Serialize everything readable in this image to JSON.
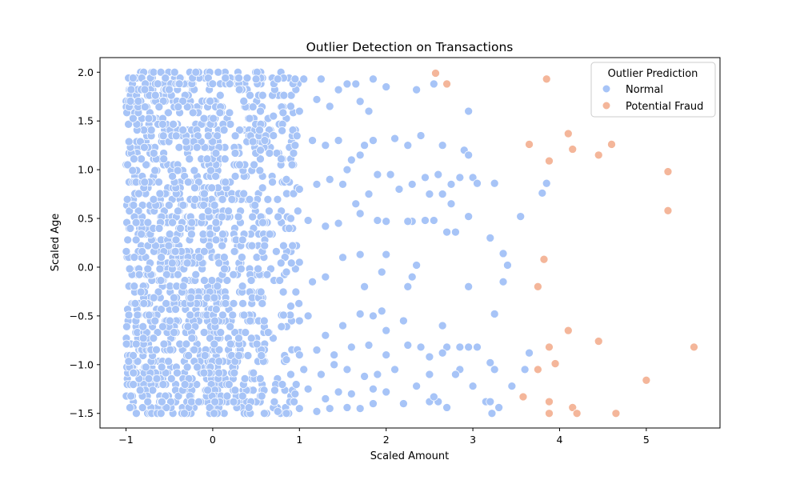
{
  "chart_data": {
    "type": "scatter",
    "title": "Outlier Detection on Transactions",
    "xlabel": "Scaled Amount",
    "ylabel": "Scaled Age",
    "xlim": [
      -1.3,
      5.85
    ],
    "ylim": [
      -1.65,
      2.15
    ],
    "xticks": [
      -1,
      0,
      1,
      2,
      3,
      4,
      5
    ],
    "yticks": [
      -1.5,
      -1.0,
      -0.5,
      0.0,
      0.5,
      1.0,
      1.5,
      2.0
    ],
    "xtick_labels": [
      "−1",
      "0",
      "1",
      "2",
      "3",
      "4",
      "5"
    ],
    "ytick_labels": [
      "−1.5",
      "−1.0",
      "−0.5",
      "0.0",
      "0.5",
      "1.0",
      "1.5",
      "2.0"
    ],
    "grid": false,
    "legend": {
      "title": "Outlier Prediction",
      "placement": "top-right"
    },
    "series": [
      {
        "name": "Normal",
        "color": "#a7c4f7",
        "note_dense": "very dense cloud for x in [-1, 0.5]",
        "points": [
          [
            2.55,
            1.88
          ],
          [
            2.35,
            1.82
          ],
          [
            1.85,
            1.93
          ],
          [
            1.65,
            1.88
          ],
          [
            1.55,
            1.88
          ],
          [
            1.45,
            1.82
          ],
          [
            1.25,
            1.93
          ],
          [
            1.05,
            1.93
          ],
          [
            0.95,
            1.93
          ],
          [
            0.75,
            1.93
          ],
          [
            0.5,
            1.93
          ],
          [
            2.0,
            1.85
          ],
          [
            1.7,
            1.7
          ],
          [
            1.2,
            1.72
          ],
          [
            0.9,
            1.65
          ],
          [
            0.55,
            1.6
          ],
          [
            2.95,
            1.6
          ],
          [
            1.8,
            1.6
          ],
          [
            1.35,
            1.65
          ],
          [
            1.0,
            1.6
          ],
          [
            0.7,
            1.55
          ],
          [
            2.1,
            1.32
          ],
          [
            2.25,
            1.25
          ],
          [
            2.4,
            1.35
          ],
          [
            2.65,
            1.25
          ],
          [
            2.9,
            1.2
          ],
          [
            2.95,
            1.15
          ],
          [
            1.85,
            1.3
          ],
          [
            1.75,
            1.25
          ],
          [
            1.6,
            1.1
          ],
          [
            1.45,
            1.3
          ],
          [
            1.3,
            1.25
          ],
          [
            1.15,
            1.3
          ],
          [
            0.95,
            1.25
          ],
          [
            0.8,
            1.4
          ],
          [
            0.7,
            1.35
          ],
          [
            0.6,
            1.3
          ],
          [
            0.55,
            1.2
          ],
          [
            1.7,
            1.15
          ],
          [
            1.55,
            1.0
          ],
          [
            1.9,
            0.95
          ],
          [
            2.05,
            0.95
          ],
          [
            2.15,
            0.8
          ],
          [
            2.3,
            0.85
          ],
          [
            2.45,
            0.92
          ],
          [
            2.6,
            0.95
          ],
          [
            2.75,
            0.85
          ],
          [
            2.85,
            0.92
          ],
          [
            3.0,
            0.92
          ],
          [
            3.05,
            0.86
          ],
          [
            3.25,
            0.86
          ],
          [
            2.5,
            0.75
          ],
          [
            2.65,
            0.75
          ],
          [
            1.8,
            0.75
          ],
          [
            1.65,
            0.65
          ],
          [
            1.5,
            0.85
          ],
          [
            1.35,
            0.9
          ],
          [
            1.2,
            0.85
          ],
          [
            1.0,
            0.8
          ],
          [
            0.85,
            0.9
          ],
          [
            3.85,
            0.86
          ],
          [
            3.8,
            0.76
          ],
          [
            3.55,
            0.52
          ],
          [
            2.95,
            0.52
          ],
          [
            2.75,
            0.65
          ],
          [
            2.7,
            0.36
          ],
          [
            2.8,
            0.36
          ],
          [
            2.55,
            0.48
          ],
          [
            2.45,
            0.48
          ],
          [
            2.3,
            0.47
          ],
          [
            2.25,
            0.47
          ],
          [
            2.0,
            0.47
          ],
          [
            1.9,
            0.48
          ],
          [
            1.7,
            0.55
          ],
          [
            1.45,
            0.45
          ],
          [
            1.3,
            0.42
          ],
          [
            1.1,
            0.48
          ],
          [
            0.9,
            0.5
          ],
          [
            3.2,
            0.3
          ],
          [
            3.35,
            0.14
          ],
          [
            3.4,
            0.02
          ],
          [
            2.35,
            0.02
          ],
          [
            2.3,
            -0.1
          ],
          [
            2.25,
            -0.2
          ],
          [
            2.95,
            -0.2
          ],
          [
            3.35,
            -0.15
          ],
          [
            2.0,
            0.13
          ],
          [
            1.7,
            0.13
          ],
          [
            1.95,
            -0.05
          ],
          [
            1.75,
            -0.2
          ],
          [
            1.5,
            0.1
          ],
          [
            1.3,
            -0.1
          ],
          [
            1.15,
            -0.15
          ],
          [
            1.0,
            0.05
          ],
          [
            0.85,
            -0.05
          ],
          [
            3.25,
            -0.48
          ],
          [
            2.65,
            -0.6
          ],
          [
            2.2,
            -0.55
          ],
          [
            2.0,
            -0.65
          ],
          [
            1.95,
            -0.45
          ],
          [
            1.85,
            -0.5
          ],
          [
            1.7,
            -0.48
          ],
          [
            1.5,
            -0.6
          ],
          [
            1.3,
            -0.7
          ],
          [
            1.1,
            -0.5
          ],
          [
            1.0,
            -0.55
          ],
          [
            0.9,
            -0.4
          ],
          [
            2.7,
            -0.82
          ],
          [
            2.85,
            -0.82
          ],
          [
            2.95,
            -0.82
          ],
          [
            3.05,
            -0.82
          ],
          [
            2.5,
            -0.92
          ],
          [
            2.65,
            -0.88
          ],
          [
            2.4,
            -0.82
          ],
          [
            2.25,
            -0.8
          ],
          [
            2.0,
            -0.9
          ],
          [
            1.8,
            -0.8
          ],
          [
            1.6,
            -0.82
          ],
          [
            1.4,
            -0.9
          ],
          [
            1.2,
            -0.85
          ],
          [
            1.0,
            -0.9
          ],
          [
            0.85,
            -0.95
          ],
          [
            3.65,
            -0.88
          ],
          [
            3.6,
            -1.05
          ],
          [
            3.2,
            -0.98
          ],
          [
            3.25,
            -1.05
          ],
          [
            2.85,
            -1.05
          ],
          [
            2.8,
            -1.1
          ],
          [
            2.5,
            -1.1
          ],
          [
            2.1,
            -1.05
          ],
          [
            1.9,
            -1.1
          ],
          [
            1.75,
            -1.12
          ],
          [
            1.55,
            -1.05
          ],
          [
            1.4,
            -1.0
          ],
          [
            1.25,
            -1.1
          ],
          [
            1.05,
            -1.05
          ],
          [
            0.9,
            -1.1
          ],
          [
            3.0,
            -1.22
          ],
          [
            2.35,
            -1.22
          ],
          [
            2.0,
            -1.28
          ],
          [
            1.85,
            -1.25
          ],
          [
            1.6,
            -1.3
          ],
          [
            1.45,
            -1.28
          ],
          [
            1.3,
            -1.35
          ],
          [
            1.1,
            -1.25
          ],
          [
            0.95,
            -1.3
          ],
          [
            3.15,
            -1.38
          ],
          [
            3.2,
            -1.38
          ],
          [
            3.3,
            -1.44
          ],
          [
            3.45,
            -1.22
          ],
          [
            3.22,
            -1.5
          ],
          [
            2.5,
            -1.38
          ],
          [
            2.6,
            -1.38
          ],
          [
            2.7,
            -1.44
          ],
          [
            2.55,
            -1.33
          ],
          [
            2.2,
            -1.4
          ],
          [
            1.85,
            -1.4
          ],
          [
            1.7,
            -1.45
          ],
          [
            1.55,
            -1.44
          ],
          [
            1.35,
            -1.45
          ],
          [
            1.2,
            -1.48
          ],
          [
            1.0,
            -1.45
          ],
          [
            0.85,
            -1.5
          ],
          [
            0.75,
            -1.48
          ]
        ]
      },
      {
        "name": "Potential Fraud",
        "color": "#f4b69a",
        "points": [
          [
            2.57,
            1.99
          ],
          [
            2.7,
            1.88
          ],
          [
            3.85,
            1.93
          ],
          [
            4.1,
            1.37
          ],
          [
            3.65,
            1.26
          ],
          [
            4.15,
            1.21
          ],
          [
            4.6,
            1.26
          ],
          [
            4.45,
            1.15
          ],
          [
            3.88,
            1.09
          ],
          [
            5.25,
            0.98
          ],
          [
            5.25,
            0.58
          ],
          [
            3.82,
            0.08
          ],
          [
            3.75,
            -0.2
          ],
          [
            4.1,
            -0.65
          ],
          [
            4.45,
            -0.76
          ],
          [
            5.55,
            -0.82
          ],
          [
            3.88,
            -0.82
          ],
          [
            3.95,
            -0.99
          ],
          [
            3.75,
            -1.05
          ],
          [
            5.0,
            -1.16
          ],
          [
            3.58,
            -1.33
          ],
          [
            3.88,
            -1.38
          ],
          [
            4.15,
            -1.44
          ],
          [
            4.2,
            -1.5
          ],
          [
            3.88,
            -1.5
          ],
          [
            4.65,
            -1.5
          ]
        ]
      }
    ]
  }
}
